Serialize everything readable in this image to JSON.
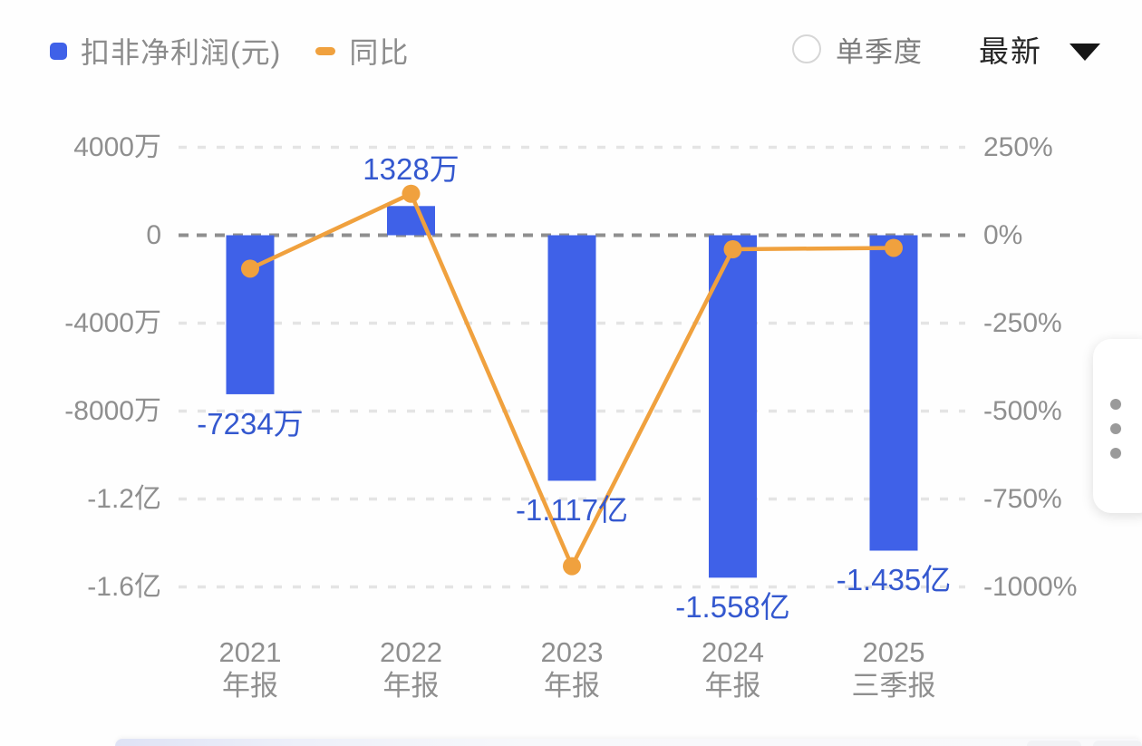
{
  "legend": {
    "bar_label": "扣非净利润(元)",
    "line_label": "同比"
  },
  "controls": {
    "radio_label": "单季度",
    "period_selector": "最新"
  },
  "chart_data": {
    "type": "bar+line",
    "categories": [
      [
        "2021",
        "年报"
      ],
      [
        "2022",
        "年报"
      ],
      [
        "2023",
        "年报"
      ],
      [
        "2024",
        "年报"
      ],
      [
        "2025",
        "三季报"
      ]
    ],
    "bar_series": {
      "name": "扣非净利润(元)",
      "unit": "万元",
      "values": [
        -7234,
        1328,
        -11170,
        -15580,
        -14350
      ],
      "labels": [
        "-7234万",
        "1328万",
        "-1.117亿",
        "-1.558亿",
        "-1.435亿"
      ]
    },
    "line_series": {
      "name": "同比",
      "unit": "%",
      "values": [
        -95,
        118,
        -941,
        -40,
        -36
      ]
    },
    "left_axis": {
      "ticks": [
        "4000万",
        "0",
        "-4000万",
        "-8000万",
        "-1.2亿",
        "-1.6亿"
      ],
      "range_wan": [
        -16000,
        4000
      ]
    },
    "right_axis": {
      "ticks": [
        "250%",
        "0%",
        "-250%",
        "-500%",
        "-750%",
        "-1000%"
      ],
      "range_pct": [
        -1000,
        250
      ]
    },
    "grid": true,
    "legend_position": "top-left",
    "colors": {
      "bar": "#3f61e8",
      "bar_label": "#3458cf",
      "line": "#f0a13e",
      "axis_text": "#8f8f8f",
      "grid_line": "#e4e4e4",
      "zero_line": "#8f8f8f"
    }
  }
}
